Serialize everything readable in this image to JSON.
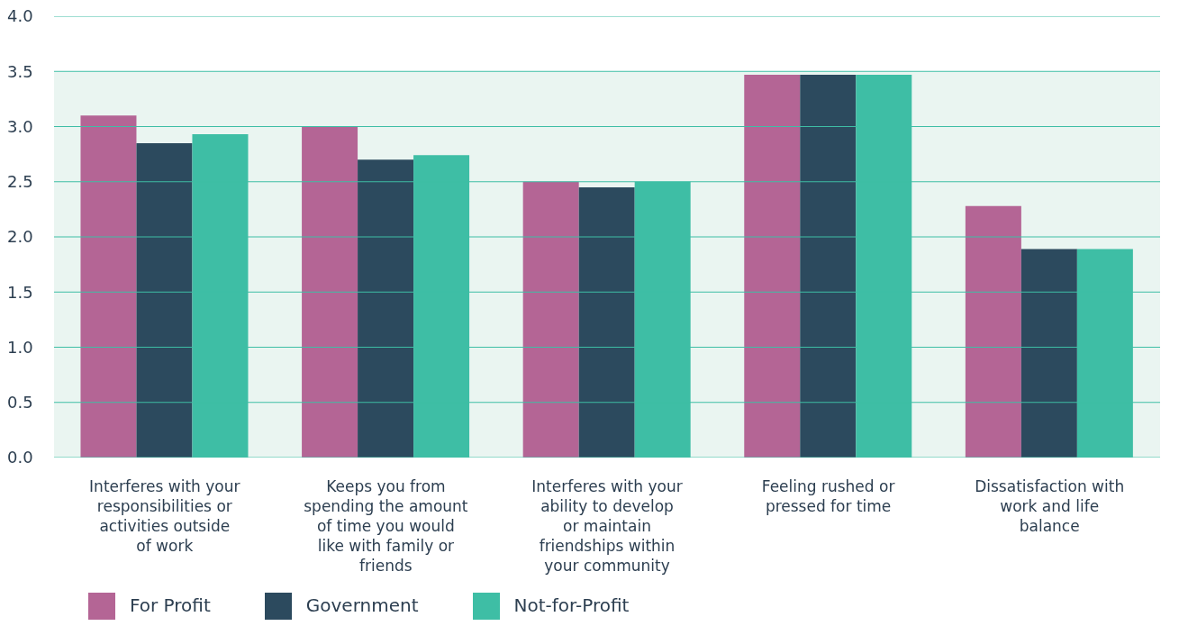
{
  "chart_data": {
    "type": "bar",
    "categories": [
      "Interferes with your responsibilities or activities outside of work",
      "Keeps you from spending the amount of time you would like with family or friends",
      "Interferes with your ability to develop or maintain friendships within your community",
      "Feeling rushed or pressed for time",
      "Dissatisfaction with work and life balance"
    ],
    "series": [
      {
        "name": "For Profit",
        "color": "#b46595",
        "values": [
          3.1,
          3.0,
          2.5,
          3.47,
          2.28
        ]
      },
      {
        "name": "Government",
        "color": "#2c4a5e",
        "values": [
          2.85,
          2.7,
          2.45,
          3.47,
          1.89
        ]
      },
      {
        "name": "Not-for-Profit",
        "color": "#3ebea5",
        "values": [
          2.93,
          2.74,
          2.5,
          3.47,
          1.89
        ]
      }
    ],
    "ylim": [
      0,
      4
    ],
    "yticks": [
      {
        "value": 0,
        "label": "0.0"
      },
      {
        "value": 0.5,
        "label": "0.5"
      },
      {
        "value": 1,
        "label": "1.0"
      },
      {
        "value": 1.5,
        "label": "1.5"
      },
      {
        "value": 2,
        "label": "2.0"
      },
      {
        "value": 2.5,
        "label": "2.5"
      },
      {
        "value": 3,
        "label": "3.0"
      },
      {
        "value": 3.5,
        "label": "3.5"
      },
      {
        "value": 4,
        "label": "4.0"
      }
    ],
    "bands": [
      {
        "axis": "y",
        "from": 0,
        "to": 3.5,
        "color": "#eaf5f1"
      }
    ],
    "grid": "y",
    "legend": "bottom left"
  }
}
